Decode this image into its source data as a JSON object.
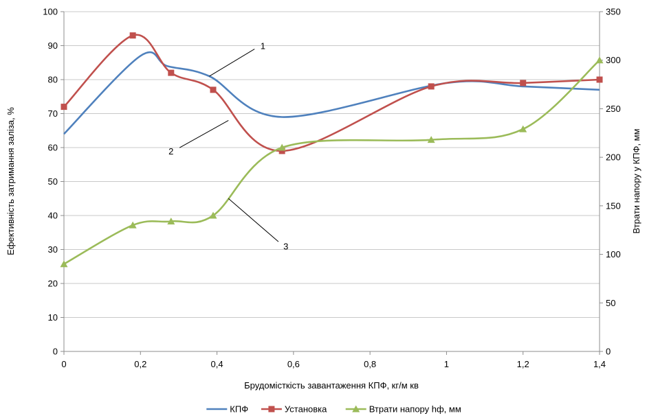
{
  "chart_data": {
    "type": "line",
    "xlabel": "Брудомісткість завантаження КПФ, кг/м кв",
    "ylabel": "Ефективність затримання заліза, %",
    "y2label": "Втрати напору у КПФ, мм",
    "xlim": [
      0,
      1.4
    ],
    "ylim": [
      0,
      100
    ],
    "y2lim": [
      0,
      350
    ],
    "x_ticks": [
      0,
      0.2,
      0.4,
      0.6,
      0.8,
      1,
      1.2,
      1.4
    ],
    "x_tick_labels": [
      "0",
      "0,2",
      "0,4",
      "0,6",
      "0,8",
      "1",
      "1,2",
      "1,4"
    ],
    "y_ticks": [
      0,
      10,
      20,
      30,
      40,
      50,
      60,
      70,
      80,
      90,
      100
    ],
    "y_tick_labels": [
      "0",
      "10",
      "20",
      "30",
      "40",
      "50",
      "60",
      "70",
      "80",
      "90",
      "100"
    ],
    "y2_ticks": [
      0,
      50,
      100,
      150,
      200,
      250,
      300,
      350
    ],
    "y2_tick_labels": [
      "0",
      "50",
      "100",
      "150",
      "200",
      "250",
      "300",
      "350"
    ],
    "grid": true,
    "legend_position": "bottom",
    "series": [
      {
        "name": "КПФ",
        "axis": "left",
        "color": "#4f81bd",
        "marker": "none",
        "points": [
          [
            0,
            64
          ],
          [
            0.2,
            87
          ],
          [
            0.27,
            84
          ],
          [
            0.38,
            81
          ],
          [
            0.57,
            69
          ],
          [
            1.0,
            79
          ],
          [
            1.2,
            78
          ],
          [
            1.4,
            77
          ]
        ]
      },
      {
        "name": "Установка",
        "axis": "left",
        "color": "#c0504d",
        "marker": "square",
        "points": [
          [
            0,
            72
          ],
          [
            0.18,
            93
          ],
          [
            0.28,
            82
          ],
          [
            0.39,
            77
          ],
          [
            0.57,
            59
          ],
          [
            0.96,
            78
          ],
          [
            1.2,
            79
          ],
          [
            1.4,
            80
          ]
        ]
      },
      {
        "name": "Втрати напору hф, мм",
        "axis": "right",
        "color": "#9bbb59",
        "marker": "triangle",
        "points": [
          [
            0,
            90
          ],
          [
            0.18,
            130
          ],
          [
            0.28,
            134
          ],
          [
            0.39,
            140
          ],
          [
            0.57,
            210
          ],
          [
            0.96,
            218
          ],
          [
            1.2,
            229
          ],
          [
            1.4,
            300
          ]
        ]
      }
    ],
    "annotations": [
      {
        "label": "1",
        "x": 0.52,
        "y": 90,
        "to": [
          0.38,
          81
        ]
      },
      {
        "label": "2",
        "x": 0.28,
        "y": 59,
        "to": [
          0.43,
          68
        ]
      },
      {
        "label": "3",
        "x": 0.58,
        "y": 31,
        "to": [
          0.43,
          45
        ]
      }
    ]
  }
}
